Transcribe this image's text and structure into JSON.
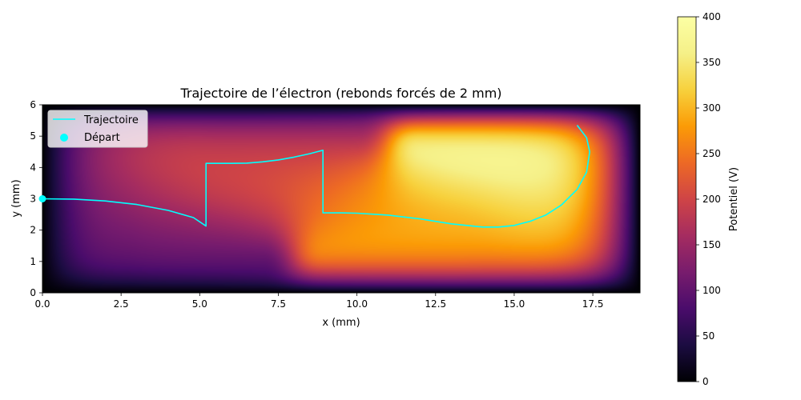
{
  "chart_data": {
    "type": "heatmap",
    "title": "Trajectoire de l’électron (rebonds forcés de 2 mm)",
    "xlabel": "x (mm)",
    "ylabel": "y (mm)",
    "xlim": [
      0,
      19
    ],
    "ylim": [
      0,
      6
    ],
    "xticks": [
      0.0,
      2.5,
      5.0,
      7.5,
      10.0,
      12.5,
      15.0,
      17.5
    ],
    "xtick_labels": [
      "0.0",
      "2.5",
      "5.0",
      "7.5",
      "10.0",
      "12.5",
      "15.0",
      "17.5"
    ],
    "yticks": [
      0,
      1,
      2,
      3,
      4,
      5,
      6
    ],
    "ytick_labels": [
      "0",
      "1",
      "2",
      "3",
      "4",
      "5",
      "6"
    ],
    "colorbar": {
      "label": "Potentiel (V)",
      "range": [
        0,
        400
      ],
      "ticks": [
        0,
        50,
        100,
        150,
        200,
        250,
        300,
        350,
        400
      ],
      "tick_labels": [
        "0",
        "50",
        "100",
        "150",
        "200",
        "250",
        "300",
        "350",
        "400"
      ],
      "colormap": "inferno"
    },
    "electrodes": [
      {
        "x": [
          3,
          7
        ],
        "y": 1,
        "potential": 120
      },
      {
        "x": [
          6,
          10
        ],
        "y": 5,
        "potential": 200
      },
      {
        "x": [
          9,
          13
        ],
        "y": 1,
        "potential": 300
      },
      {
        "x": [
          12,
          16
        ],
        "y": 5,
        "potential": 400
      }
    ],
    "series": [
      {
        "name": "Trajectoire",
        "type": "line",
        "color": "#00ffff",
        "points": [
          [
            0,
            3.0
          ],
          [
            1,
            2.99
          ],
          [
            2,
            2.93
          ],
          [
            3,
            2.82
          ],
          [
            4,
            2.63
          ],
          [
            4.8,
            2.4
          ],
          [
            5.2,
            2.13
          ],
          [
            5.2,
            4.13
          ],
          [
            6.0,
            4.13
          ],
          [
            6.5,
            4.14
          ],
          [
            7.0,
            4.18
          ],
          [
            7.5,
            4.24
          ],
          [
            8.0,
            4.33
          ],
          [
            8.5,
            4.44
          ],
          [
            8.92,
            4.55
          ],
          [
            8.92,
            2.55
          ],
          [
            9.5,
            2.55
          ],
          [
            10.0,
            2.54
          ],
          [
            11.0,
            2.48
          ],
          [
            12.0,
            2.36
          ],
          [
            13.0,
            2.2
          ],
          [
            14.0,
            2.1
          ],
          [
            14.5,
            2.1
          ],
          [
            15.0,
            2.15
          ],
          [
            15.5,
            2.28
          ],
          [
            16.0,
            2.48
          ],
          [
            16.5,
            2.8
          ],
          [
            17.0,
            3.3
          ],
          [
            17.3,
            3.85
          ],
          [
            17.4,
            4.5
          ],
          [
            17.3,
            4.95
          ],
          [
            17.0,
            5.35
          ]
        ]
      },
      {
        "name": "Départ",
        "type": "scatter",
        "color": "#00ffff",
        "points": [
          [
            0,
            3
          ]
        ]
      }
    ],
    "legend": {
      "position": "top-left",
      "entries": [
        "Trajectoire",
        "Départ"
      ]
    }
  }
}
